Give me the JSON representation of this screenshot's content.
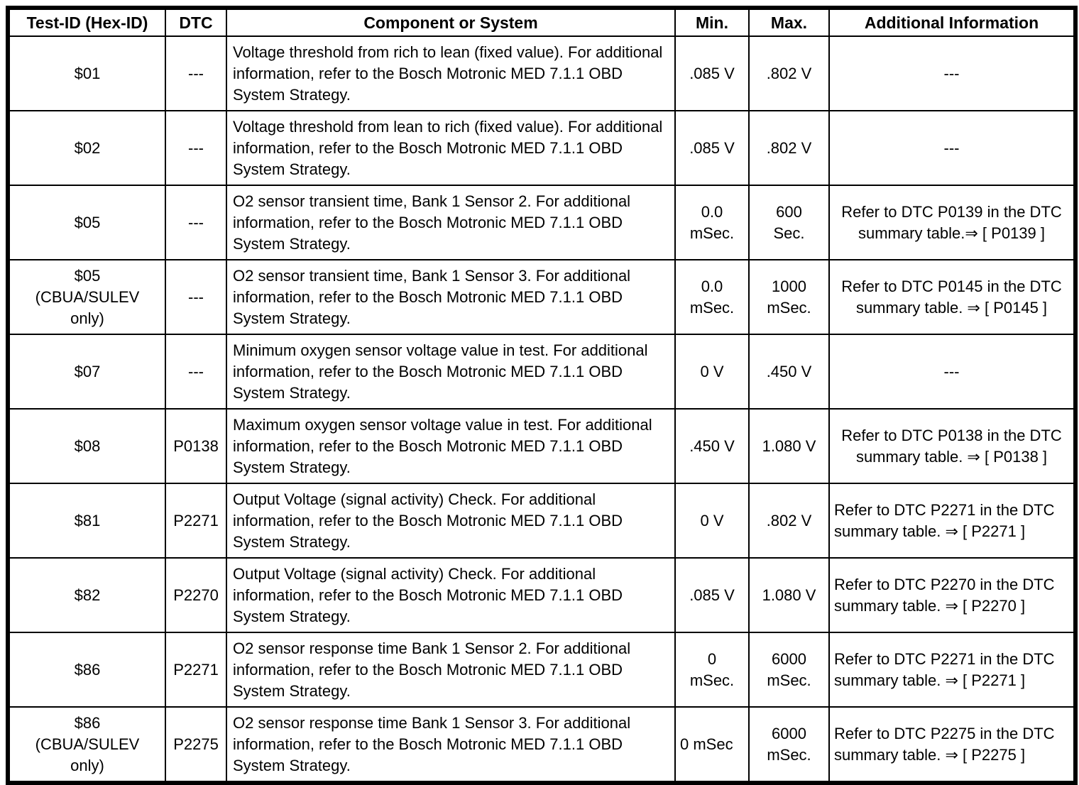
{
  "table": {
    "headers": {
      "test_id": "Test-ID (Hex-ID)",
      "dtc": "DTC",
      "component": "Component or System",
      "min": "Min.",
      "max": "Max.",
      "additional": "Additional Information"
    },
    "rows": [
      {
        "test_id": "$01",
        "dtc": "---",
        "component": "Voltage threshold from rich to lean (fixed value). For additional information, refer to the Bosch Motronic MED 7.1.1 OBD System Strategy.",
        "min": ".085 V",
        "max": ".802 V",
        "additional": "---"
      },
      {
        "test_id": "$02",
        "dtc": "---",
        "component": "Voltage threshold from lean to rich (fixed value). For additional information, refer to the Bosch Motronic MED 7.1.1 OBD System Strategy.",
        "min": ".085 V",
        "max": ".802 V",
        "additional": "---"
      },
      {
        "test_id": "$05",
        "dtc": "---",
        "component": "O2 sensor transient time, Bank 1 Sensor 2. For additional information, refer to the Bosch Motronic MED 7.1.1 OBD System Strategy.",
        "min": "0.0\nmSec.",
        "max": "600\nSec.",
        "additional": "Refer to DTC P0139 in the DTC summary table.⇒ [ P0139 ]"
      },
      {
        "test_id": "$05\n(CBUA/SULEV\nonly)",
        "dtc": "---",
        "component": "O2 sensor transient time, Bank 1 Sensor 3. For additional information, refer to the Bosch Motronic MED 7.1.1 OBD System Strategy.",
        "min": "0.0\nmSec.",
        "max": "1000\nmSec.",
        "additional": "Refer to DTC P0145 in the DTC summary table. ⇒ [ P0145 ]"
      },
      {
        "test_id": "$07",
        "dtc": "---",
        "component": "Minimum oxygen sensor voltage value in test. For additional information, refer to the Bosch Motronic MED 7.1.1 OBD System Strategy.",
        "min": "0 V",
        "max": ".450 V",
        "additional": "---"
      },
      {
        "test_id": "$08",
        "dtc": "P0138",
        "component": "Maximum oxygen sensor voltage value in test. For additional information, refer to the Bosch Motronic MED 7.1.1 OBD System Strategy.",
        "min": ".450 V",
        "max": "1.080 V",
        "additional": "Refer to DTC P0138 in the DTC summary table. ⇒ [ P0138 ]"
      },
      {
        "test_id": "$81",
        "dtc": "P2271",
        "component": "Output Voltage (signal activity) Check. For additional information, refer to the Bosch Motronic MED 7.1.1 OBD System Strategy.",
        "min": "0 V",
        "max": ".802 V",
        "additional": "Refer to DTC P2271 in the DTC summary table. ⇒ [ P2271 ]"
      },
      {
        "test_id": "$82",
        "dtc": "P2270",
        "component": "Output Voltage (signal activity) Check. For additional information, refer to the Bosch Motronic MED 7.1.1 OBD System Strategy.",
        "min": ".085 V",
        "max": "1.080 V",
        "additional": "Refer to DTC P2270 in the DTC summary table. ⇒ [ P2270 ]"
      },
      {
        "test_id": "$86",
        "dtc": "P2271",
        "component": "O2 sensor response time Bank 1 Sensor 2. For additional information, refer to the Bosch Motronic MED 7.1.1 OBD System Strategy.",
        "min": "0\nmSec.",
        "max": "6000\nmSec.",
        "additional": "Refer to DTC P2271 in the DTC summary table. ⇒ [ P2271 ]"
      },
      {
        "test_id": "$86\n(CBUA/SULEV\nonly)",
        "dtc": "P2275",
        "component": "O2 sensor response time Bank 1 Sensor 3. For additional information, refer to the Bosch Motronic MED 7.1.1 OBD System Strategy.",
        "min": "0 mSec",
        "max": "6000\nmSec.",
        "additional": "Refer to DTC P2275 in the DTC summary table. ⇒ [ P2275 ]"
      }
    ]
  }
}
